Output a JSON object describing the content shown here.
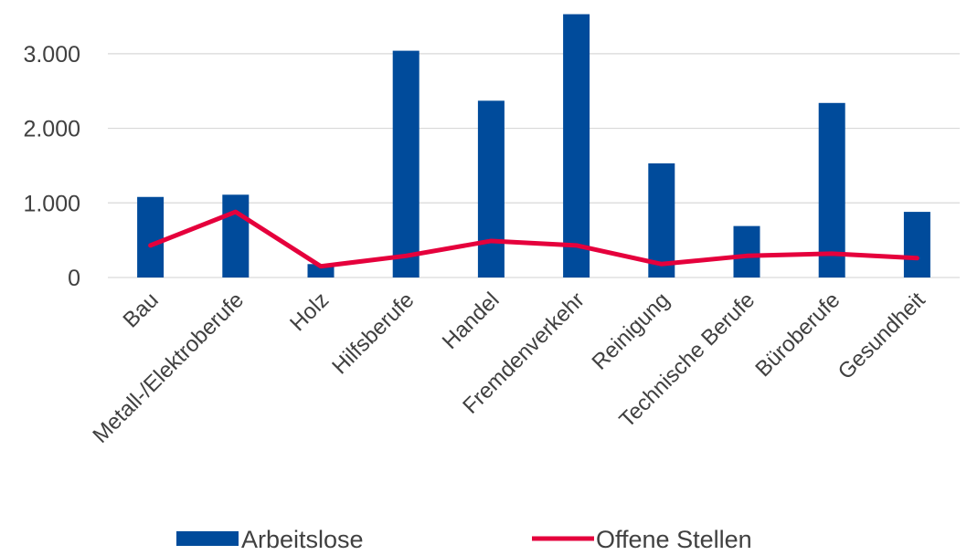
{
  "chart_data": {
    "type": "bar",
    "title": "",
    "xlabel": "",
    "ylabel": "",
    "categories": [
      "Bau",
      "Metall-/Elektroberufe",
      "Holz",
      "Hilfsberufe",
      "Handel",
      "Fremdenverkehr",
      "Reinigung",
      "Technische Berufe",
      "Büroberufe",
      "Gesundheit"
    ],
    "series": [
      {
        "name": "Arbeitslose",
        "kind": "bar",
        "color": "#004B9B",
        "values": [
          1080,
          1110,
          180,
          3040,
          2370,
          3530,
          1530,
          690,
          2340,
          880
        ]
      },
      {
        "name": "Offene Stellen",
        "kind": "line",
        "color": "#E5003C",
        "values": [
          430,
          880,
          150,
          290,
          490,
          430,
          180,
          290,
          320,
          260
        ]
      }
    ],
    "ylim": [
      0,
      3500
    ],
    "y_ticks": [
      {
        "value": 0,
        "label": "0"
      },
      {
        "value": 1000,
        "label": "1.000"
      },
      {
        "value": 2000,
        "label": "2.000"
      },
      {
        "value": 3000,
        "label": "3.000"
      }
    ],
    "grid": true,
    "legend_position": "bottom"
  }
}
